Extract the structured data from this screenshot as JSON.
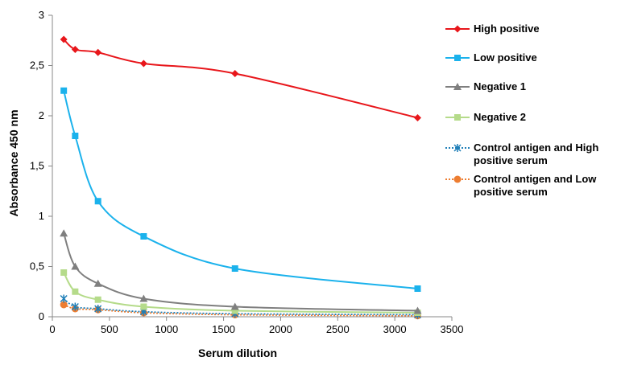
{
  "chart_data": {
    "type": "line",
    "title": "",
    "xlabel": "Serum dilution",
    "ylabel": "Absorbance 450 nm",
    "xlim": [
      0,
      3500
    ],
    "ylim": [
      0,
      3
    ],
    "x_ticks": [
      "0",
      "500",
      "1000",
      "1500",
      "2000",
      "2500",
      "3000",
      "3500"
    ],
    "y_ticks": [
      "0",
      "0,5",
      "1",
      "1,5",
      "2",
      "2,5",
      "3"
    ],
    "grid": false,
    "legend_position": "right",
    "x": [
      100,
      200,
      400,
      800,
      1600,
      3200
    ],
    "series": [
      {
        "name": "High positive",
        "color": "#e8161b",
        "marker": "diamond",
        "line": "solid",
        "values": [
          2.76,
          2.66,
          2.63,
          2.52,
          2.42,
          1.98
        ]
      },
      {
        "name": "Low positive",
        "color": "#1bb2ec",
        "marker": "square",
        "line": "solid",
        "values": [
          2.25,
          1.8,
          1.15,
          0.8,
          0.48,
          0.28
        ]
      },
      {
        "name": "Negative 1",
        "color": "#7f7f7f",
        "marker": "triangle",
        "line": "solid",
        "values": [
          0.83,
          0.5,
          0.33,
          0.18,
          0.1,
          0.06
        ]
      },
      {
        "name": "Negative 2",
        "color": "#b5db8a",
        "marker": "square",
        "line": "solid",
        "values": [
          0.44,
          0.25,
          0.17,
          0.1,
          0.06,
          0.04
        ]
      },
      {
        "name": "Control antigen and High positive serum",
        "color": "#1f7fb8",
        "marker": "star",
        "line": "dotted",
        "values": [
          0.18,
          0.1,
          0.08,
          0.05,
          0.03,
          0.02
        ]
      },
      {
        "name": "Control antigen and Low positive serum",
        "color": "#ed7d31",
        "marker": "circle",
        "line": "dotted",
        "values": [
          0.12,
          0.08,
          0.07,
          0.04,
          0.02,
          0.01
        ]
      }
    ],
    "legend_lines": [
      [
        "High positive"
      ],
      [
        "Low positive"
      ],
      [
        "Negative 1"
      ],
      [
        "Negative 2"
      ],
      [
        "Control antigen and High",
        "positive serum"
      ],
      [
        "Control antigen and Low",
        "positive serum"
      ]
    ]
  }
}
